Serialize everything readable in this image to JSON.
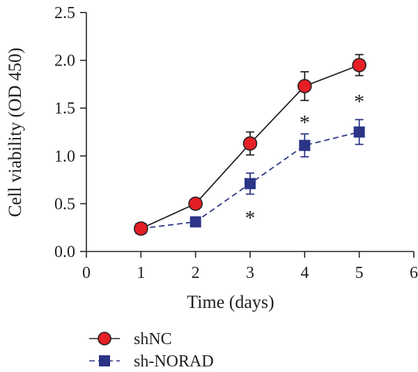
{
  "chart_data": {
    "type": "line",
    "title": "",
    "xlabel": "Time (days)",
    "ylabel": "Cell viability (OD 450)",
    "xlim": [
      0,
      6
    ],
    "ylim": [
      0,
      2.5
    ],
    "x_ticks": [
      "0",
      "1",
      "2",
      "3",
      "4",
      "5",
      "6"
    ],
    "y_ticks": [
      "0.0",
      "0.5",
      "1.0",
      "1.5",
      "2.0",
      "2.5"
    ],
    "grid": false,
    "legend_position": "bottom-left",
    "series": [
      {
        "name": "shNC",
        "x": [
          1,
          2,
          3,
          4,
          5
        ],
        "y": [
          0.24,
          0.5,
          1.13,
          1.73,
          1.95
        ],
        "error": [
          0.0,
          0.0,
          0.12,
          0.15,
          0.11
        ],
        "color": "#e41f26",
        "edge_color": "#231f20",
        "line_color": "#231f20",
        "line_style": "solid",
        "marker": "circle"
      },
      {
        "name": "sh-NORAD",
        "x": [
          1,
          2,
          3,
          4,
          5
        ],
        "y": [
          0.24,
          0.31,
          0.71,
          1.11,
          1.25
        ],
        "error": [
          0.0,
          0.0,
          0.11,
          0.12,
          0.13
        ],
        "color": "#2b3486",
        "edge_color": "#2b3486",
        "line_color": "#2b3486",
        "line_style": "dashed",
        "marker": "square"
      }
    ],
    "annotations": [
      {
        "text": "*",
        "x": 3,
        "y": 0.41
      },
      {
        "text": "*",
        "x": 4,
        "y": 1.41
      },
      {
        "text": "*",
        "x": 5,
        "y": 1.63
      }
    ]
  }
}
